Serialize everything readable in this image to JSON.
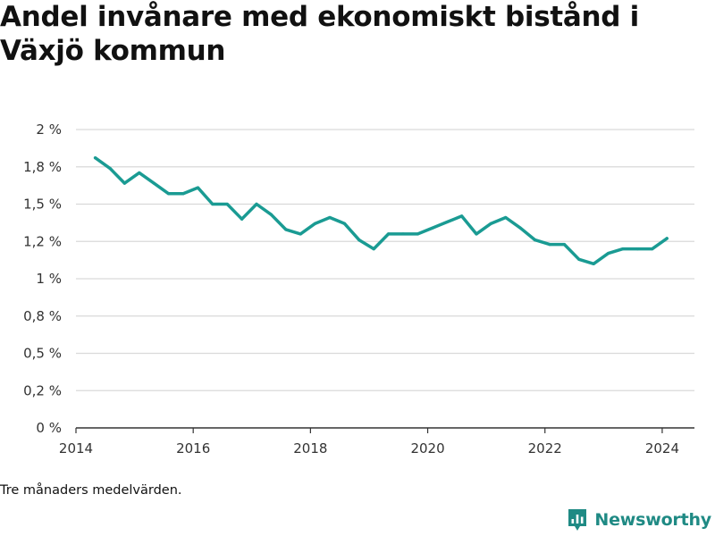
{
  "title": "Andel invånare med ekonomiskt bistånd i Växjö kommun",
  "footnote": "Tre månaders medelvärden.",
  "brand": {
    "name": "Newsworthy",
    "color": "#1f8a84",
    "logo_icon": "bar-chart-icon"
  },
  "chart_data": {
    "type": "line",
    "title": "Andel invånare med ekonomiskt bistånd i Växjö kommun",
    "xlabel": "",
    "ylabel": "",
    "xlim": [
      2014.0,
      2024.55
    ],
    "ylim": [
      0,
      2
    ],
    "x_ticks": [
      2014,
      2016,
      2018,
      2020,
      2022,
      2024
    ],
    "x_tick_labels": [
      "2014",
      "2016",
      "2018",
      "2020",
      "2022",
      "2024"
    ],
    "y_ticks": [
      0,
      0.25,
      0.5,
      0.75,
      1,
      1.25,
      1.5,
      1.75,
      2
    ],
    "y_tick_labels": [
      "0 %",
      "0,2 %",
      "0,5 %",
      "0,8 %",
      "1 %",
      "1,2 %",
      "1,5 %",
      "1,8 %",
      "2 %"
    ],
    "grid": true,
    "line_color": "#1a9b93",
    "series": [
      {
        "x": [
          2014.33,
          2014.58,
          2014.83,
          2015.08,
          2015.33,
          2015.58,
          2015.83,
          2016.08,
          2016.33,
          2016.58,
          2016.83,
          2017.08,
          2017.33,
          2017.58,
          2017.83,
          2018.08,
          2018.33,
          2018.58,
          2018.83,
          2019.08,
          2019.33,
          2019.58,
          2019.83,
          2020.08,
          2020.33,
          2020.58,
          2020.83,
          2021.08,
          2021.33,
          2021.58,
          2021.83,
          2022.08,
          2022.33,
          2022.58,
          2022.83,
          2023.08,
          2023.33,
          2023.58,
          2023.83,
          2024.08
        ],
        "values": [
          1.81,
          1.74,
          1.64,
          1.71,
          1.64,
          1.57,
          1.57,
          1.61,
          1.5,
          1.5,
          1.4,
          1.5,
          1.43,
          1.33,
          1.3,
          1.37,
          1.41,
          1.37,
          1.26,
          1.2,
          1.3,
          1.3,
          1.3,
          1.34,
          1.38,
          1.42,
          1.3,
          1.37,
          1.41,
          1.34,
          1.26,
          1.23,
          1.23,
          1.13,
          1.1,
          1.17,
          1.2,
          1.2,
          1.2,
          1.27
        ]
      }
    ]
  }
}
